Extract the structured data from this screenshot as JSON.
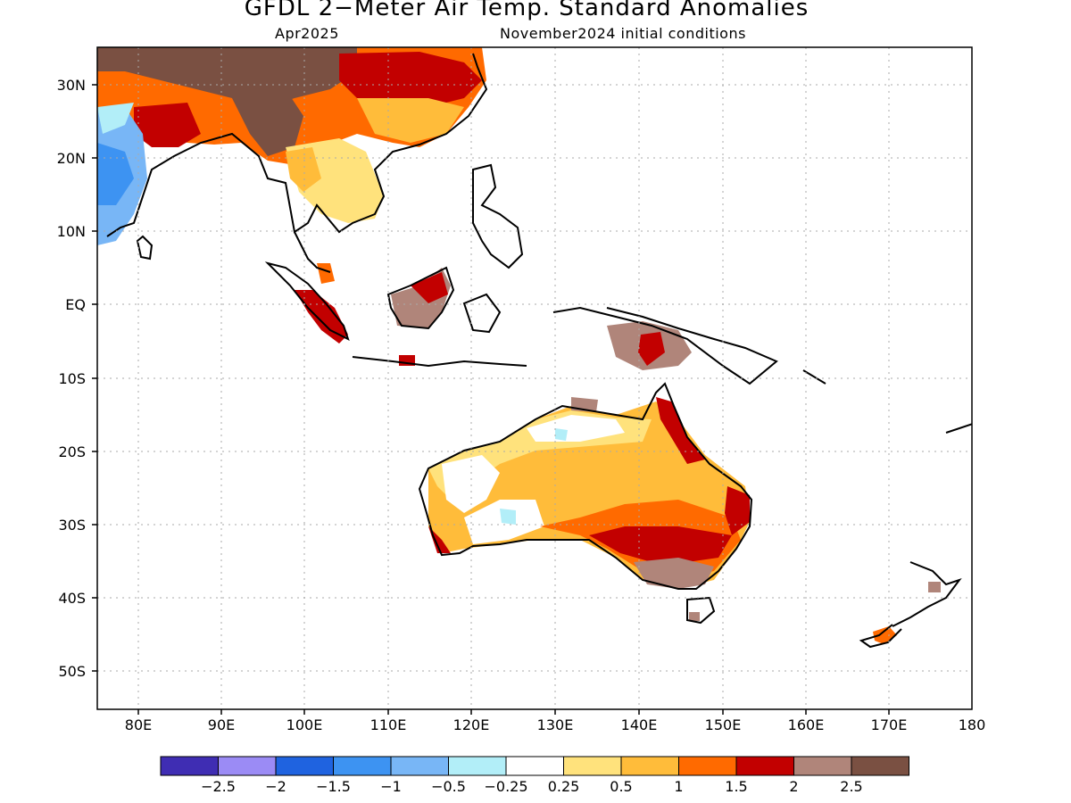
{
  "header": {
    "title": "GFDL 2−Meter Air Temp. Standard Anomalies",
    "target_month": "Apr2025",
    "initial_conditions": "November2024 initial conditions"
  },
  "axes": {
    "lat_labels": [
      "30N",
      "20N",
      "10N",
      "EQ",
      "10S",
      "20S",
      "30S",
      "40S",
      "50S"
    ],
    "lon_labels": [
      "80E",
      "90E",
      "100E",
      "110E",
      "120E",
      "130E",
      "140E",
      "150E",
      "160E",
      "170E",
      "180"
    ],
    "lon_range": [
      75,
      180
    ],
    "lat_range": [
      -55,
      35
    ],
    "grid": true
  },
  "colorbar": {
    "colors": [
      "#3f2db3",
      "#9b8bf5",
      "#1f63e0",
      "#3d93f2",
      "#78b6f6",
      "#b2eef8",
      "#ffffff",
      "#ffe27c",
      "#ffbc3a",
      "#ff6a00",
      "#c20000",
      "#b0857a",
      "#7a5042"
    ],
    "labels": [
      "−2.5",
      "−2",
      "−1.5",
      "−1",
      "−0.5",
      "−0.25",
      "0.25",
      "0.5",
      "1",
      "1.5",
      "2",
      "2.5"
    ]
  }
}
